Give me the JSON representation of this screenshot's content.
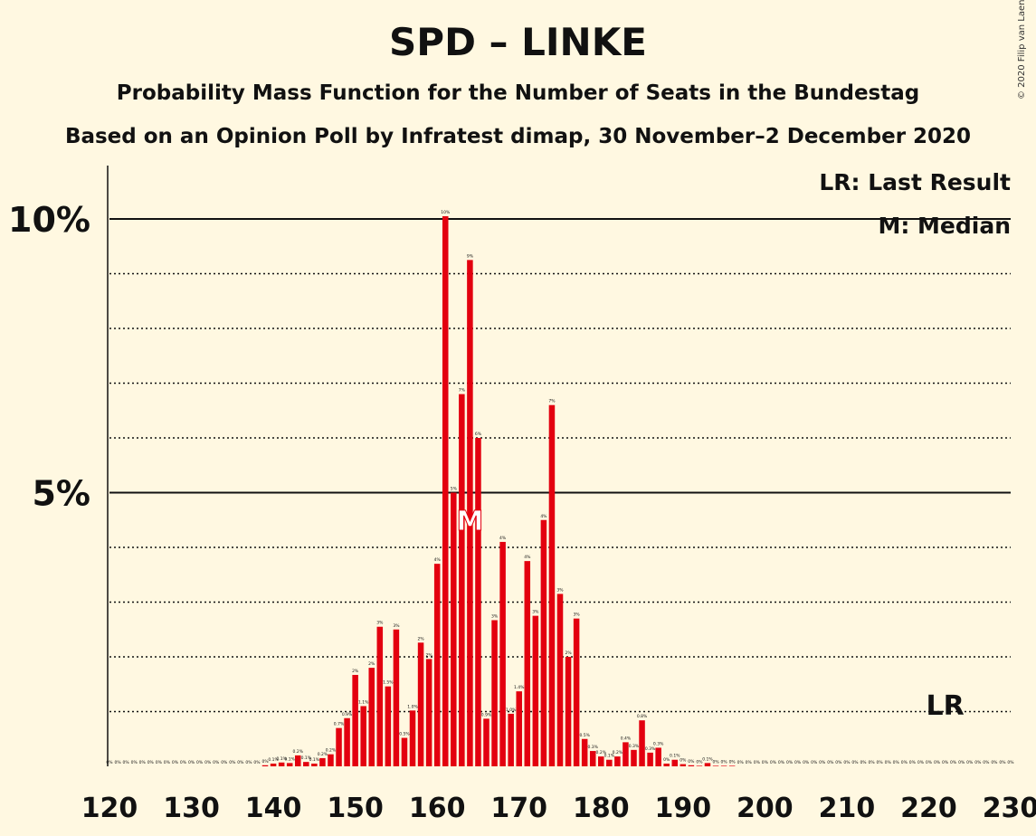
{
  "title": "SPD – LINKE",
  "subtitle": "Probability Mass Function for the Number of Seats in the Bundestag",
  "subtitle2": "Based on an Opinion Poll by Infratest dimap, 30 November–2 December 2020",
  "copyright": "© 2020 Filip van Laenen",
  "colors": {
    "bar": "#E3000F",
    "background": "#FFF8E1",
    "text": "#111111"
  },
  "chart_data": {
    "type": "bar",
    "xlim": [
      120,
      230
    ],
    "ylim": [
      0,
      11
    ],
    "x_ticks": [
      120,
      130,
      140,
      150,
      160,
      170,
      180,
      190,
      200,
      210,
      220,
      230
    ],
    "y_ticks": [
      {
        "value": 5,
        "label": "5%"
      },
      {
        "value": 10,
        "label": "10%"
      }
    ],
    "grid": "dotted at every 1%, solid at 5% and 10%",
    "legend": {
      "lr": "LR: Last Result",
      "m": "M: Median"
    },
    "markers": {
      "median_seat": 164,
      "median_label": "M",
      "last_result_seat": 222,
      "last_result_label": "LR"
    },
    "series": [
      {
        "x": [
          120,
          121,
          122,
          123,
          124,
          125,
          126,
          127,
          128,
          129,
          130,
          131,
          132,
          133,
          134,
          135,
          136,
          137,
          138,
          139,
          140,
          141,
          142,
          143,
          144,
          145,
          146,
          147,
          148,
          149,
          150,
          151,
          152,
          153,
          154,
          155,
          156,
          157,
          158,
          159,
          160,
          161,
          162,
          163,
          164,
          165,
          166,
          167,
          168,
          169,
          170,
          171,
          172,
          173,
          174,
          175,
          176,
          177,
          178,
          179,
          180,
          181,
          182,
          183,
          184,
          185,
          186,
          187,
          188,
          189,
          190,
          191,
          192,
          193,
          194,
          195,
          196,
          197,
          198,
          199,
          200,
          201,
          202,
          203,
          204,
          205,
          206,
          207,
          208,
          209,
          210,
          211,
          212,
          213,
          214,
          215,
          216,
          217,
          218,
          219,
          220,
          221,
          222,
          223,
          224,
          225,
          226,
          227,
          228,
          229,
          230
        ],
        "values": [
          0,
          0,
          0,
          0,
          0,
          0,
          0,
          0,
          0,
          0,
          0,
          0,
          0,
          0,
          0,
          0,
          0,
          0,
          0,
          0.02,
          0.05,
          0.07,
          0.06,
          0.2,
          0.08,
          0.05,
          0.15,
          0.22,
          0.7,
          0.88,
          1.67,
          1.1,
          1.8,
          2.55,
          1.46,
          2.5,
          0.52,
          1.02,
          2.26,
          1.96,
          3.7,
          10.05,
          5.0,
          6.8,
          9.25,
          6.0,
          0.87,
          2.67,
          4.1,
          0.96,
          1.37,
          3.75,
          2.75,
          4.5,
          6.6,
          3.15,
          2.0,
          2.7,
          0.5,
          0.28,
          0.18,
          0.12,
          0.18,
          0.44,
          0.3,
          0.84,
          0.25,
          0.34,
          0.05,
          0.12,
          0.04,
          0.02,
          0.01,
          0.06,
          0.01,
          0.01,
          0.01,
          0,
          0,
          0,
          0,
          0,
          0,
          0,
          0,
          0,
          0,
          0,
          0,
          0,
          0,
          0,
          0,
          0,
          0,
          0,
          0,
          0,
          0,
          0,
          0,
          0,
          0,
          0,
          0,
          0,
          0,
          0,
          0,
          0,
          0
        ],
        "labels": [
          "0%",
          "0%",
          "0%",
          "0%",
          "0%",
          "0%",
          "0%",
          "0%",
          "0%",
          "0%",
          "0%",
          "0%",
          "0%",
          "0%",
          "0%",
          "0%",
          "0%",
          "0%",
          "0%",
          "0%",
          "0.1%",
          "0.1%",
          "0.1%",
          "0.2%",
          "0.1%",
          "0.1%",
          "0.2%",
          "0.2%",
          "0.7%",
          "0.9%",
          "2%",
          "1.1%",
          "2%",
          "3%",
          "1.5%",
          "3%",
          "0.5%",
          "1.0%",
          "2%",
          "2%",
          "4%",
          "10%",
          "5%",
          "7%",
          "9%",
          "6%",
          "0.9%",
          "3%",
          "4%",
          "1.0%",
          "1.4%",
          "4%",
          "3%",
          "4%",
          "7%",
          "3%",
          "2%",
          "3%",
          "0.5%",
          "0.3%",
          "0.2%",
          "0.1%",
          "0.2%",
          "0.4%",
          "0.3%",
          "0.8%",
          "0.3%",
          "0.3%",
          "0%",
          "0.1%",
          "0%",
          "0%",
          "0%",
          "0.1%",
          "0%",
          "0%",
          "0%",
          "0%",
          "0%",
          "0%",
          "0%",
          "0%",
          "0%",
          "0%",
          "0%",
          "0%",
          "0%",
          "0%",
          "0%",
          "0%",
          "0%",
          "0%",
          "0%",
          "0%",
          "0%",
          "0%",
          "0%",
          "0%",
          "0%",
          "0%",
          "0%",
          "0%",
          "0%",
          "0%",
          "0%",
          "0%",
          "0%",
          "0%",
          "0%",
          "0%",
          "0%"
        ]
      }
    ]
  }
}
